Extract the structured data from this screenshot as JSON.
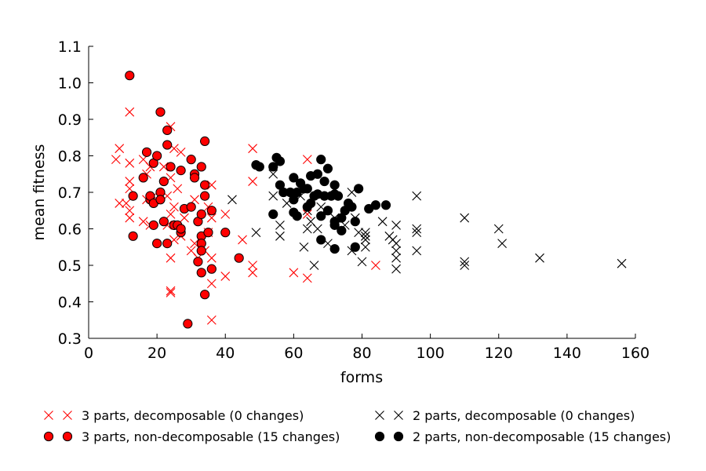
{
  "chart_data": {
    "type": "scatter",
    "xlabel": "forms",
    "ylabel": "mean fitness",
    "xlim": [
      0,
      160
    ],
    "ylim": [
      0.3,
      1.1
    ],
    "xticks": [
      0,
      20,
      40,
      60,
      80,
      100,
      120,
      140,
      160
    ],
    "xtick_labels": [
      "0",
      "20",
      "40",
      "60",
      "80",
      "100",
      "120",
      "140",
      "160"
    ],
    "yticks": [
      0.3,
      0.4,
      0.5,
      0.6,
      0.7,
      0.8,
      0.9,
      1.0,
      1.1
    ],
    "ytick_labels": [
      "0.3",
      "0.4",
      "0.5",
      "0.6",
      "0.7",
      "0.8",
      "0.9",
      "1.0",
      "1.1"
    ],
    "grid": false,
    "legend_placement": "bottom",
    "series": [
      {
        "name": "3 parts, decomposable (0 changes)",
        "marker": "x",
        "color": "#ff0000",
        "points": [
          [
            8,
            0.79
          ],
          [
            9,
            0.67
          ],
          [
            9,
            0.82
          ],
          [
            12,
            0.92
          ],
          [
            12,
            0.78
          ],
          [
            12,
            0.73
          ],
          [
            12,
            0.71
          ],
          [
            11,
            0.67
          ],
          [
            12,
            0.65
          ],
          [
            12,
            0.63
          ],
          [
            16,
            0.79
          ],
          [
            18,
            0.77
          ],
          [
            17,
            0.75
          ],
          [
            17,
            0.68
          ],
          [
            16,
            0.62
          ],
          [
            19,
            0.69
          ],
          [
            18,
            0.61
          ],
          [
            24,
            0.88
          ],
          [
            25,
            0.82
          ],
          [
            27,
            0.81
          ],
          [
            22,
            0.77
          ],
          [
            24,
            0.74
          ],
          [
            26,
            0.71
          ],
          [
            23,
            0.69
          ],
          [
            25,
            0.66
          ],
          [
            24,
            0.64
          ],
          [
            28,
            0.63
          ],
          [
            23,
            0.61
          ],
          [
            27,
            0.58
          ],
          [
            25,
            0.57
          ],
          [
            24,
            0.52
          ],
          [
            24,
            0.43
          ],
          [
            24,
            0.425
          ],
          [
            30,
            0.54
          ],
          [
            32,
            0.52
          ],
          [
            31,
            0.56
          ],
          [
            31,
            0.68
          ],
          [
            33,
            0.55
          ],
          [
            34,
            0.54
          ],
          [
            35,
            0.66
          ],
          [
            36,
            0.72
          ],
          [
            36,
            0.63
          ],
          [
            35,
            0.59
          ],
          [
            36,
            0.52
          ],
          [
            36,
            0.45
          ],
          [
            36,
            0.35
          ],
          [
            40,
            0.64
          ],
          [
            40,
            0.47
          ],
          [
            45,
            0.57
          ],
          [
            48,
            0.82
          ],
          [
            48,
            0.73
          ],
          [
            48,
            0.5
          ],
          [
            48,
            0.48
          ],
          [
            60,
            0.48
          ],
          [
            64,
            0.79
          ],
          [
            64,
            0.64
          ],
          [
            64,
            0.465
          ],
          [
            84,
            0.5
          ]
        ]
      },
      {
        "name": "3 parts, non-decomposable (15 changes)",
        "marker": "o",
        "color": "#ff0000",
        "points": [
          [
            12,
            1.02
          ],
          [
            13,
            0.69
          ],
          [
            13,
            0.58
          ],
          [
            16,
            0.74
          ],
          [
            17,
            0.81
          ],
          [
            18,
            0.68
          ],
          [
            18,
            0.69
          ],
          [
            19,
            0.67
          ],
          [
            19,
            0.61
          ],
          [
            19,
            0.78
          ],
          [
            20,
            0.56
          ],
          [
            20,
            0.8
          ],
          [
            21,
            0.92
          ],
          [
            21,
            0.7
          ],
          [
            21,
            0.68
          ],
          [
            22,
            0.73
          ],
          [
            22,
            0.62
          ],
          [
            23,
            0.87
          ],
          [
            23,
            0.83
          ],
          [
            23,
            0.56
          ],
          [
            24,
            0.77
          ],
          [
            25,
            0.61
          ],
          [
            25,
            0.61
          ],
          [
            26,
            0.61
          ],
          [
            27,
            0.76
          ],
          [
            27,
            0.59
          ],
          [
            27,
            0.6
          ],
          [
            28,
            0.655
          ],
          [
            29,
            0.34
          ],
          [
            30,
            0.79
          ],
          [
            30,
            0.66
          ],
          [
            31,
            0.75
          ],
          [
            31,
            0.74
          ],
          [
            32,
            0.62
          ],
          [
            32,
            0.51
          ],
          [
            33,
            0.77
          ],
          [
            33,
            0.64
          ],
          [
            33,
            0.58
          ],
          [
            33,
            0.56
          ],
          [
            33,
            0.54
          ],
          [
            33,
            0.48
          ],
          [
            34,
            0.84
          ],
          [
            34,
            0.72
          ],
          [
            34,
            0.69
          ],
          [
            34,
            0.42
          ],
          [
            35,
            0.59
          ],
          [
            36,
            0.65
          ],
          [
            36,
            0.49
          ],
          [
            40,
            0.59
          ],
          [
            44,
            0.52
          ]
        ]
      },
      {
        "name": "2 parts, decomposable (0 changes)",
        "marker": "x",
        "color": "#000000",
        "points": [
          [
            42,
            0.68
          ],
          [
            49,
            0.59
          ],
          [
            54,
            0.75
          ],
          [
            54,
            0.69
          ],
          [
            56,
            0.61
          ],
          [
            56,
            0.58
          ],
          [
            58,
            0.67
          ],
          [
            62,
            0.69
          ],
          [
            63,
            0.55
          ],
          [
            64,
            0.6
          ],
          [
            64,
            0.65
          ],
          [
            65,
            0.62
          ],
          [
            66,
            0.5
          ],
          [
            67,
            0.6
          ],
          [
            68,
            0.66
          ],
          [
            70,
            0.56
          ],
          [
            72,
            0.63
          ],
          [
            75,
            0.61
          ],
          [
            77,
            0.54
          ],
          [
            77,
            0.7
          ],
          [
            78,
            0.63
          ],
          [
            79,
            0.59
          ],
          [
            80,
            0.51
          ],
          [
            81,
            0.55
          ],
          [
            81,
            0.57
          ],
          [
            81,
            0.59
          ],
          [
            81,
            0.58
          ],
          [
            86,
            0.62
          ],
          [
            88,
            0.58
          ],
          [
            89,
            0.57
          ],
          [
            90,
            0.61
          ],
          [
            90,
            0.56
          ],
          [
            90,
            0.54
          ],
          [
            90,
            0.52
          ],
          [
            90,
            0.49
          ],
          [
            96,
            0.69
          ],
          [
            96,
            0.6
          ],
          [
            96,
            0.59
          ],
          [
            96,
            0.54
          ],
          [
            110,
            0.63
          ],
          [
            110,
            0.51
          ],
          [
            110,
            0.5
          ],
          [
            120,
            0.6
          ],
          [
            121,
            0.56
          ],
          [
            132,
            0.52
          ],
          [
            156,
            0.505
          ]
        ]
      },
      {
        "name": "2 parts, non-decomposable (15 changes)",
        "marker": "o",
        "color": "#000000",
        "points": [
          [
            49,
            0.775
          ],
          [
            50,
            0.77
          ],
          [
            54,
            0.77
          ],
          [
            54,
            0.64
          ],
          [
            55,
            0.795
          ],
          [
            56,
            0.785
          ],
          [
            56,
            0.72
          ],
          [
            57,
            0.7
          ],
          [
            59,
            0.7
          ],
          [
            60,
            0.74
          ],
          [
            60,
            0.68
          ],
          [
            60,
            0.645
          ],
          [
            61,
            0.635
          ],
          [
            61,
            0.7
          ],
          [
            62,
            0.725
          ],
          [
            63,
            0.71
          ],
          [
            64,
            0.66
          ],
          [
            64,
            0.71
          ],
          [
            65,
            0.67
          ],
          [
            65,
            0.745
          ],
          [
            66,
            0.69
          ],
          [
            67,
            0.75
          ],
          [
            67,
            0.695
          ],
          [
            68,
            0.79
          ],
          [
            68,
            0.635
          ],
          [
            68,
            0.57
          ],
          [
            69,
            0.73
          ],
          [
            69,
            0.69
          ],
          [
            70,
            0.765
          ],
          [
            70,
            0.65
          ],
          [
            71,
            0.69
          ],
          [
            72,
            0.72
          ],
          [
            72,
            0.695
          ],
          [
            72,
            0.62
          ],
          [
            72,
            0.61
          ],
          [
            72,
            0.545
          ],
          [
            73,
            0.69
          ],
          [
            74,
            0.63
          ],
          [
            74,
            0.595
          ],
          [
            75,
            0.65
          ],
          [
            76,
            0.67
          ],
          [
            77,
            0.66
          ],
          [
            78,
            0.62
          ],
          [
            78,
            0.55
          ],
          [
            79,
            0.71
          ],
          [
            82,
            0.655
          ],
          [
            84,
            0.665
          ],
          [
            87,
            0.665
          ]
        ]
      }
    ]
  }
}
